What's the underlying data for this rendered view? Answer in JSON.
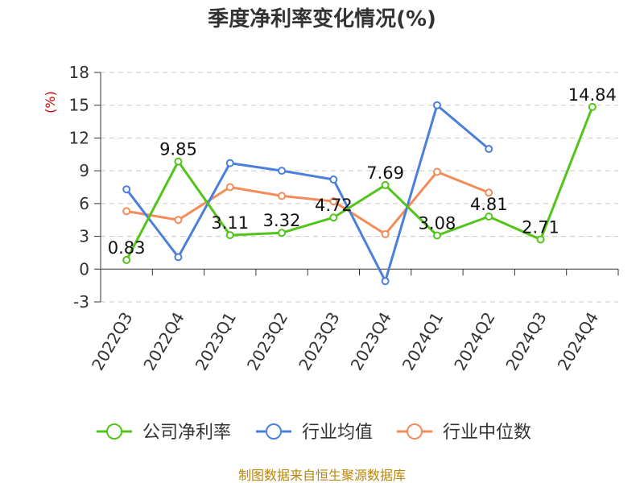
{
  "chart_data": {
    "type": "line",
    "title": "季度净利率变化情况(%)",
    "ylabel": "(%)",
    "ylim": [
      -3,
      18
    ],
    "yticks": [
      -3,
      0,
      3,
      6,
      9,
      12,
      15,
      18
    ],
    "grid": true,
    "legend_position": "bottom",
    "categories": [
      "2022Q3",
      "2022Q4",
      "2023Q1",
      "2023Q2",
      "2023Q3",
      "2023Q4",
      "2024Q1",
      "2024Q2",
      "2024Q3",
      "2024Q4"
    ],
    "series": [
      {
        "name": "公司净利率",
        "color": "#52c41a",
        "values": [
          0.83,
          9.85,
          3.11,
          3.32,
          4.72,
          7.69,
          3.08,
          4.81,
          2.71,
          14.84
        ],
        "labels": true
      },
      {
        "name": "行业均值",
        "color": "#4a7fdc",
        "values": [
          7.3,
          1.1,
          9.7,
          9.0,
          8.2,
          -1.1,
          15.0,
          11.0,
          null,
          null
        ],
        "labels": false
      },
      {
        "name": "行业中位数",
        "color": "#f48c5a",
        "values": [
          5.3,
          4.5,
          7.5,
          6.7,
          6.2,
          3.2,
          8.9,
          7.0,
          null,
          null
        ],
        "labels": false
      }
    ],
    "source": "制图数据来自恒生聚源数据库"
  }
}
